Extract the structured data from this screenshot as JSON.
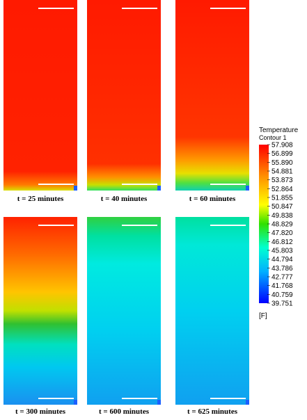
{
  "panels": [
    {
      "label": "t = 25 minutes"
    },
    {
      "label": "t = 40 minutes"
    },
    {
      "label": "t = 60 minutes"
    },
    {
      "label": "t = 300 minutes"
    },
    {
      "label": "t = 600 minutes"
    },
    {
      "label": "t = 625 minutes"
    }
  ],
  "legend": {
    "title": "Temperature",
    "subtitle": "Contour 1",
    "ticks": [
      "57.908",
      "56.899",
      "55.890",
      "54.881",
      "53.873",
      "52.864",
      "51.855",
      "50.847",
      "49.838",
      "48.829",
      "47.820",
      "46.812",
      "45.803",
      "44.794",
      "43.786",
      "42.777",
      "41.768",
      "40.759",
      "39.751"
    ],
    "unit": "[F]"
  }
}
